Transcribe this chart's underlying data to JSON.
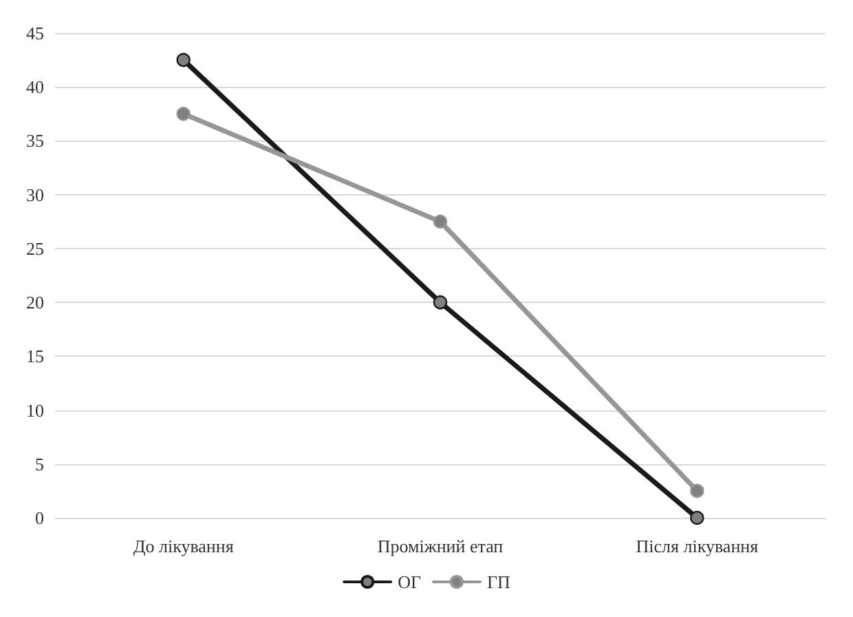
{
  "chart_data": {
    "type": "line",
    "categories": [
      "До лікування",
      "Проміжний етап",
      "Після лікування"
    ],
    "series": [
      {
        "name": "ОГ",
        "color": "#1a1a1a",
        "values": [
          42.5,
          20,
          0
        ]
      },
      {
        "name": "ГП",
        "color": "#969696",
        "values": [
          37.5,
          27.5,
          2.5
        ]
      }
    ],
    "ylim": [
      0,
      45
    ],
    "yticks": [
      0,
      5,
      10,
      15,
      20,
      25,
      30,
      35,
      40,
      45
    ],
    "grid": "y",
    "legend": "bottom",
    "marker": "circle",
    "line_style": "solid"
  }
}
